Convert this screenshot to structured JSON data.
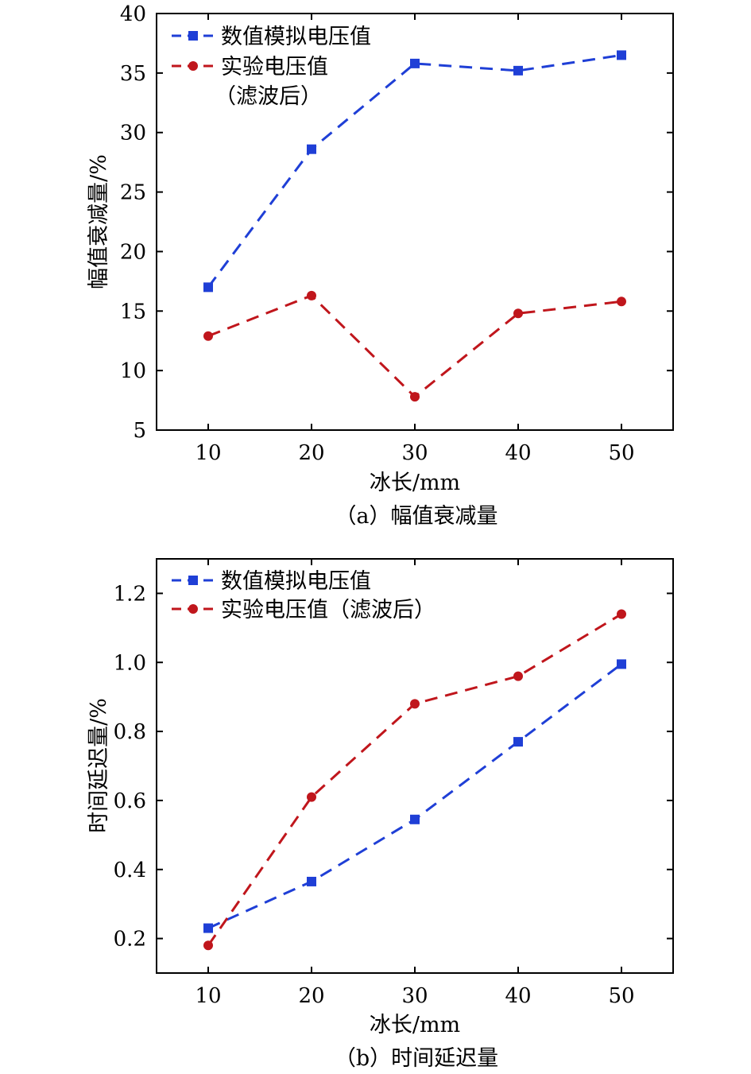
{
  "chart_data": [
    {
      "type": "line",
      "caption": "（a）幅值衰减量",
      "xlabel": "冰长/mm",
      "ylabel": "幅值衰减量/%",
      "x": [
        10,
        20,
        30,
        40,
        50
      ],
      "xlim": [
        5,
        55
      ],
      "ylim": [
        5,
        40
      ],
      "xticks": [
        10,
        20,
        30,
        40,
        50
      ],
      "yticks": [
        5,
        10,
        15,
        20,
        25,
        30,
        35,
        40
      ],
      "grid": false,
      "legend_position": "top-left",
      "series": [
        {
          "name": "数值模拟电压值",
          "color": "#1f3fd6",
          "marker": "square",
          "values": [
            17.0,
            28.6,
            35.8,
            35.2,
            36.5
          ]
        },
        {
          "name": "实验电压值",
          "name_line2": "（滤波后）",
          "color": "#c0161c",
          "marker": "circle",
          "values": [
            12.9,
            16.3,
            7.8,
            14.8,
            15.8
          ]
        }
      ]
    },
    {
      "type": "line",
      "caption": "（b）时间延迟量",
      "xlabel": "冰长/mm",
      "ylabel": "时间延迟量/%",
      "x": [
        10,
        20,
        30,
        40,
        50
      ],
      "xlim": [
        5,
        55
      ],
      "ylim": [
        0.1,
        1.3
      ],
      "xticks": [
        10,
        20,
        30,
        40,
        50
      ],
      "yticks": [
        "0.2",
        "0.4",
        "0.6",
        "0.8",
        "1.0",
        "1.2"
      ],
      "grid": false,
      "legend_position": "top-left",
      "series": [
        {
          "name": "数值模拟电压值",
          "color": "#1f3fd6",
          "marker": "square",
          "values": [
            0.23,
            0.365,
            0.545,
            0.77,
            0.995
          ]
        },
        {
          "name": "实验电压值（滤波后）",
          "color": "#c0161c",
          "marker": "circle",
          "values": [
            0.18,
            0.61,
            0.88,
            0.96,
            1.14
          ]
        }
      ]
    }
  ]
}
